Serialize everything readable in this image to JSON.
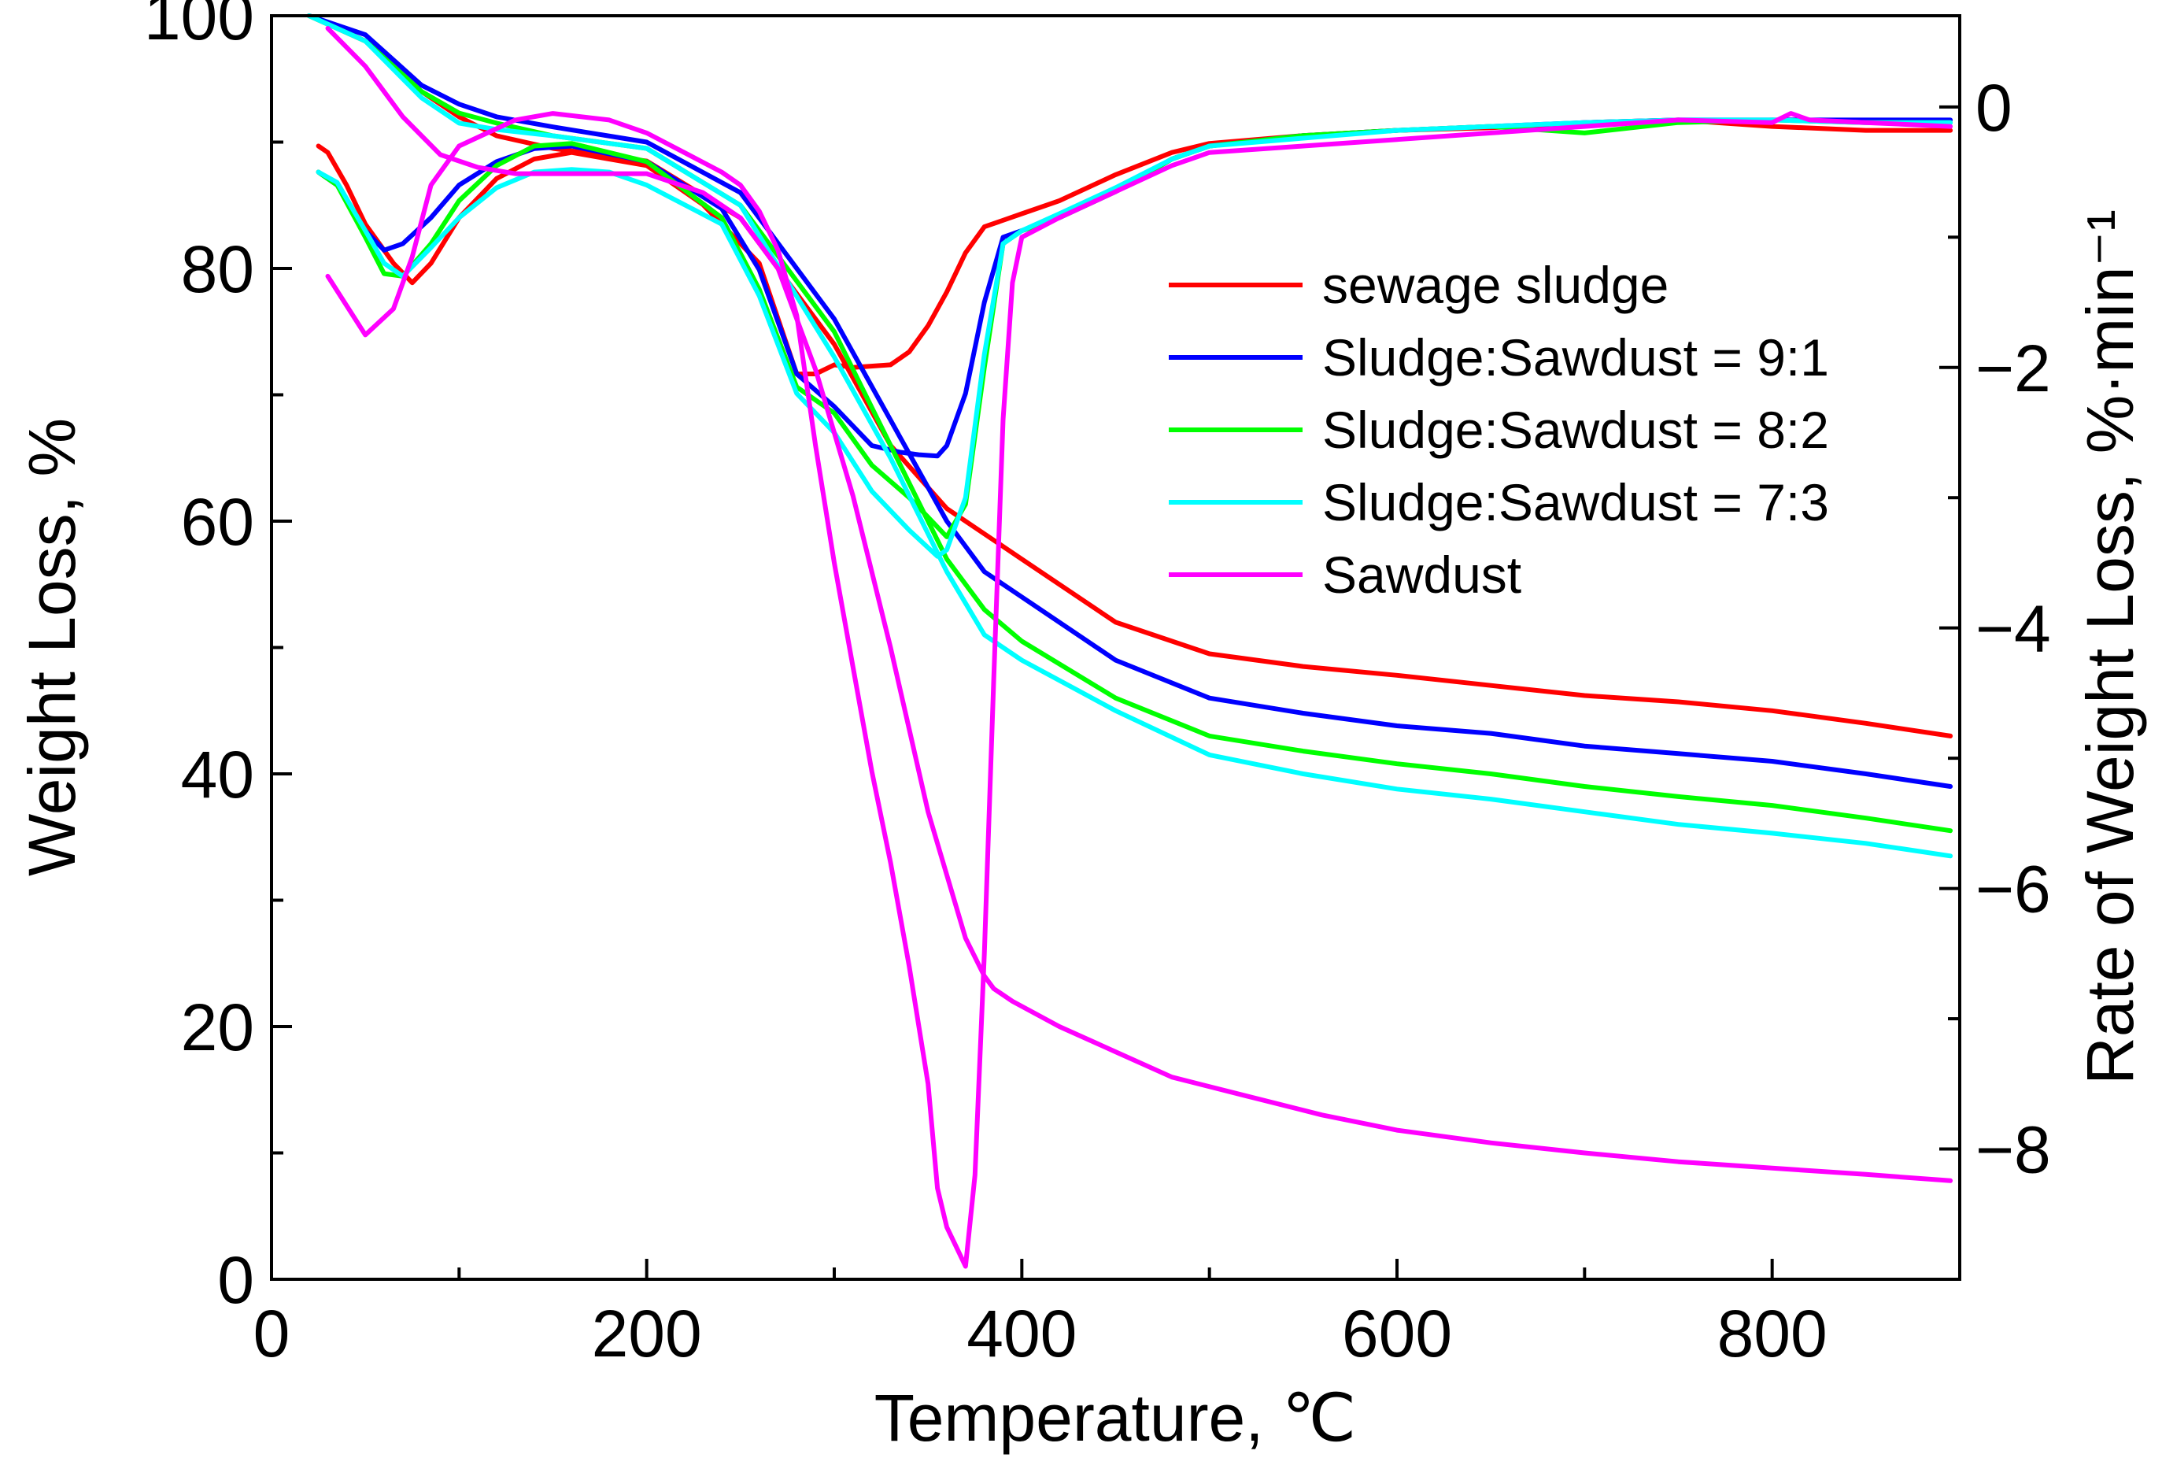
{
  "chart_data": {
    "type": "line",
    "title": "",
    "xlabel": "Temperature, ℃",
    "ylabel": "Weight Loss, %",
    "y2label": "Rate of Weight Loss, %·min⁻¹",
    "xlim": [
      0,
      900
    ],
    "ylim": [
      0,
      100
    ],
    "y2lim": [
      -9,
      0.7
    ],
    "x_ticks": [
      0,
      200,
      400,
      600,
      800
    ],
    "y_ticks": [
      0,
      20,
      40,
      60,
      80,
      100
    ],
    "y2_ticks": [
      -8,
      -6,
      -4,
      -2,
      0
    ],
    "x_tick_labels": [
      "0",
      "200",
      "400",
      "600",
      "800"
    ],
    "y_tick_labels": [
      "0",
      "20",
      "40",
      "60",
      "80",
      "100"
    ],
    "y2_tick_labels": [
      "−8",
      "−6",
      "−4",
      "−2",
      "0"
    ],
    "grid": false,
    "legend_position": "center-right",
    "series": [
      {
        "name": "sewage sludge",
        "color": "#ff0000",
        "tg": {
          "x": [
            20,
            50,
            80,
            100,
            120,
            150,
            200,
            250,
            300,
            330,
            360,
            400,
            450,
            500,
            550,
            600,
            650,
            700,
            750,
            800,
            850,
            895
          ],
          "y": [
            100,
            98,
            94,
            92,
            90.5,
            89.5,
            88.5,
            84,
            74,
            66,
            61,
            57,
            52,
            49.5,
            48.5,
            47.8,
            47,
            46.2,
            45.7,
            45,
            44,
            43
          ]
        },
        "dtg": {
          "x": [
            25,
            30,
            40,
            50,
            65,
            75,
            85,
            100,
            120,
            140,
            160,
            200,
            230,
            260,
            280,
            290,
            300,
            310,
            330,
            340,
            350,
            360,
            370,
            380,
            400,
            420,
            450,
            480,
            500,
            550,
            600,
            650,
            700,
            750,
            800,
            850,
            895
          ],
          "y": [
            -0.3,
            -0.35,
            -0.6,
            -0.9,
            -1.2,
            -1.35,
            -1.2,
            -0.85,
            -0.55,
            -0.4,
            -0.35,
            -0.45,
            -0.75,
            -1.2,
            -2.05,
            -2.05,
            -1.98,
            -2.0,
            -1.98,
            -1.88,
            -1.68,
            -1.42,
            -1.12,
            -0.92,
            -0.82,
            -0.72,
            -0.52,
            -0.35,
            -0.28,
            -0.22,
            -0.18,
            -0.16,
            -0.12,
            -0.1,
            -0.15,
            -0.18,
            -0.18
          ]
        }
      },
      {
        "name": "Sludge:Sawdust = 9:1",
        "color": "#0000ff",
        "tg": {
          "x": [
            20,
            50,
            80,
            100,
            120,
            150,
            200,
            250,
            300,
            330,
            360,
            380,
            400,
            450,
            500,
            550,
            600,
            650,
            700,
            750,
            800,
            850,
            895
          ],
          "y": [
            100,
            98.5,
            94.5,
            93,
            92,
            91.2,
            90,
            86,
            76,
            68,
            60,
            56,
            54,
            49,
            46,
            44.8,
            43.8,
            43.2,
            42.2,
            41.6,
            41,
            40,
            39
          ]
        },
        "dtg": {
          "x": [
            25,
            35,
            50,
            60,
            70,
            85,
            100,
            120,
            140,
            160,
            200,
            240,
            260,
            280,
            300,
            320,
            335,
            345,
            355,
            360,
            370,
            380,
            390,
            400,
            420,
            450,
            480,
            500,
            550,
            600,
            650,
            700,
            750,
            800,
            850,
            895
          ],
          "y": [
            -0.5,
            -0.6,
            -0.95,
            -1.1,
            -1.05,
            -0.85,
            -0.6,
            -0.42,
            -0.32,
            -0.3,
            -0.42,
            -0.78,
            -1.25,
            -2.05,
            -2.3,
            -2.6,
            -2.65,
            -2.67,
            -2.68,
            -2.6,
            -2.2,
            -1.5,
            -1.0,
            -0.95,
            -0.85,
            -0.65,
            -0.4,
            -0.3,
            -0.22,
            -0.18,
            -0.15,
            -0.12,
            -0.1,
            -0.1,
            -0.1,
            -0.1
          ]
        }
      },
      {
        "name": "Sludge:Sawdust = 8:2",
        "color": "#00ff00",
        "tg": {
          "x": [
            20,
            50,
            80,
            100,
            120,
            150,
            200,
            250,
            300,
            330,
            360,
            380,
            400,
            450,
            500,
            550,
            600,
            650,
            700,
            750,
            800,
            850,
            895
          ],
          "y": [
            100,
            98,
            94,
            92.3,
            91.5,
            90.5,
            89.5,
            85,
            75,
            66,
            57,
            53,
            50.5,
            46,
            43,
            41.8,
            40.8,
            40,
            39,
            38.2,
            37.5,
            36.5,
            35.5
          ]
        },
        "dtg": {
          "x": [
            25,
            35,
            50,
            60,
            70,
            85,
            100,
            120,
            140,
            160,
            200,
            240,
            260,
            280,
            300,
            320,
            340,
            350,
            360,
            370,
            380,
            390,
            400,
            420,
            450,
            480,
            500,
            550,
            600,
            650,
            700,
            750,
            800,
            850,
            895
          ],
          "y": [
            -0.5,
            -0.6,
            -1.0,
            -1.28,
            -1.3,
            -1.05,
            -0.72,
            -0.45,
            -0.3,
            -0.28,
            -0.42,
            -0.85,
            -1.4,
            -2.15,
            -2.35,
            -2.75,
            -3.0,
            -3.15,
            -3.3,
            -3.05,
            -2.0,
            -1.05,
            -0.95,
            -0.85,
            -0.65,
            -0.4,
            -0.3,
            -0.22,
            -0.18,
            -0.15,
            -0.2,
            -0.12,
            -0.1,
            -0.12,
            -0.12
          ]
        }
      },
      {
        "name": "Sludge:Sawdust = 7:3",
        "color": "#00ffff",
        "tg": {
          "x": [
            20,
            50,
            80,
            100,
            120,
            150,
            200,
            250,
            300,
            330,
            360,
            380,
            400,
            450,
            500,
            550,
            600,
            650,
            700,
            750,
            800,
            850,
            895
          ],
          "y": [
            100,
            98,
            93.5,
            91.5,
            91,
            90.5,
            89.5,
            85,
            73,
            65,
            56,
            51,
            49,
            45,
            41.5,
            40,
            38.8,
            38,
            37,
            36,
            35.3,
            34.5,
            33.5
          ]
        },
        "dtg": {
          "x": [
            25,
            35,
            50,
            60,
            70,
            85,
            100,
            120,
            140,
            160,
            180,
            200,
            240,
            260,
            280,
            300,
            320,
            340,
            355,
            360,
            370,
            380,
            390,
            400,
            420,
            450,
            480,
            500,
            550,
            600,
            650,
            700,
            750,
            800,
            850,
            895
          ],
          "y": [
            -0.5,
            -0.58,
            -0.95,
            -1.2,
            -1.3,
            -1.08,
            -0.85,
            -0.62,
            -0.5,
            -0.48,
            -0.5,
            -0.6,
            -0.9,
            -1.45,
            -2.2,
            -2.5,
            -2.95,
            -3.25,
            -3.45,
            -3.4,
            -3.0,
            -1.9,
            -1.05,
            -0.95,
            -0.82,
            -0.62,
            -0.4,
            -0.3,
            -0.24,
            -0.18,
            -0.15,
            -0.12,
            -0.1,
            -0.1,
            -0.12,
            -0.12
          ]
        }
      },
      {
        "name": "Sawdust",
        "color": "#ff00ff",
        "tg": {
          "x": [
            30,
            50,
            70,
            90,
            110,
            130,
            150,
            170,
            200,
            230,
            250,
            270,
            290,
            310,
            330,
            350,
            370,
            380,
            385,
            395,
            420,
            450,
            480,
            520,
            560,
            600,
            650,
            700,
            750,
            800,
            850,
            895
          ],
          "y": [
            99,
            96,
            92,
            89,
            88,
            87.5,
            87.5,
            87.5,
            87.5,
            86,
            84,
            80,
            72,
            62,
            50,
            37,
            27,
            24,
            23,
            22,
            20,
            18,
            16,
            14.5,
            13,
            11.8,
            10.8,
            10,
            9.3,
            8.8,
            8.3,
            7.8
          ]
        },
        "dtg": {
          "x": [
            30,
            50,
            65,
            75,
            85,
            100,
            115,
            130,
            150,
            180,
            200,
            220,
            240,
            250,
            260,
            270,
            280,
            290,
            300,
            310,
            320,
            330,
            340,
            350,
            355,
            360,
            365,
            370,
            375,
            380,
            385,
            390,
            395,
            400,
            420,
            450,
            480,
            500,
            550,
            600,
            650,
            700,
            750,
            800,
            810,
            820,
            850,
            895
          ],
          "y": [
            -1.3,
            -1.75,
            -1.55,
            -1.15,
            -0.6,
            -0.3,
            -0.2,
            -0.1,
            -0.05,
            -0.1,
            -0.2,
            -0.35,
            -0.5,
            -0.6,
            -0.8,
            -1.1,
            -1.6,
            -2.6,
            -3.5,
            -4.3,
            -5.1,
            -5.8,
            -6.6,
            -7.5,
            -8.3,
            -8.6,
            -8.75,
            -8.9,
            -8.2,
            -6.5,
            -4.4,
            -2.4,
            -1.35,
            -1.0,
            -0.85,
            -0.65,
            -0.45,
            -0.35,
            -0.3,
            -0.25,
            -0.2,
            -0.15,
            -0.1,
            -0.12,
            -0.05,
            -0.1,
            -0.12,
            -0.15
          ]
        }
      }
    ]
  }
}
